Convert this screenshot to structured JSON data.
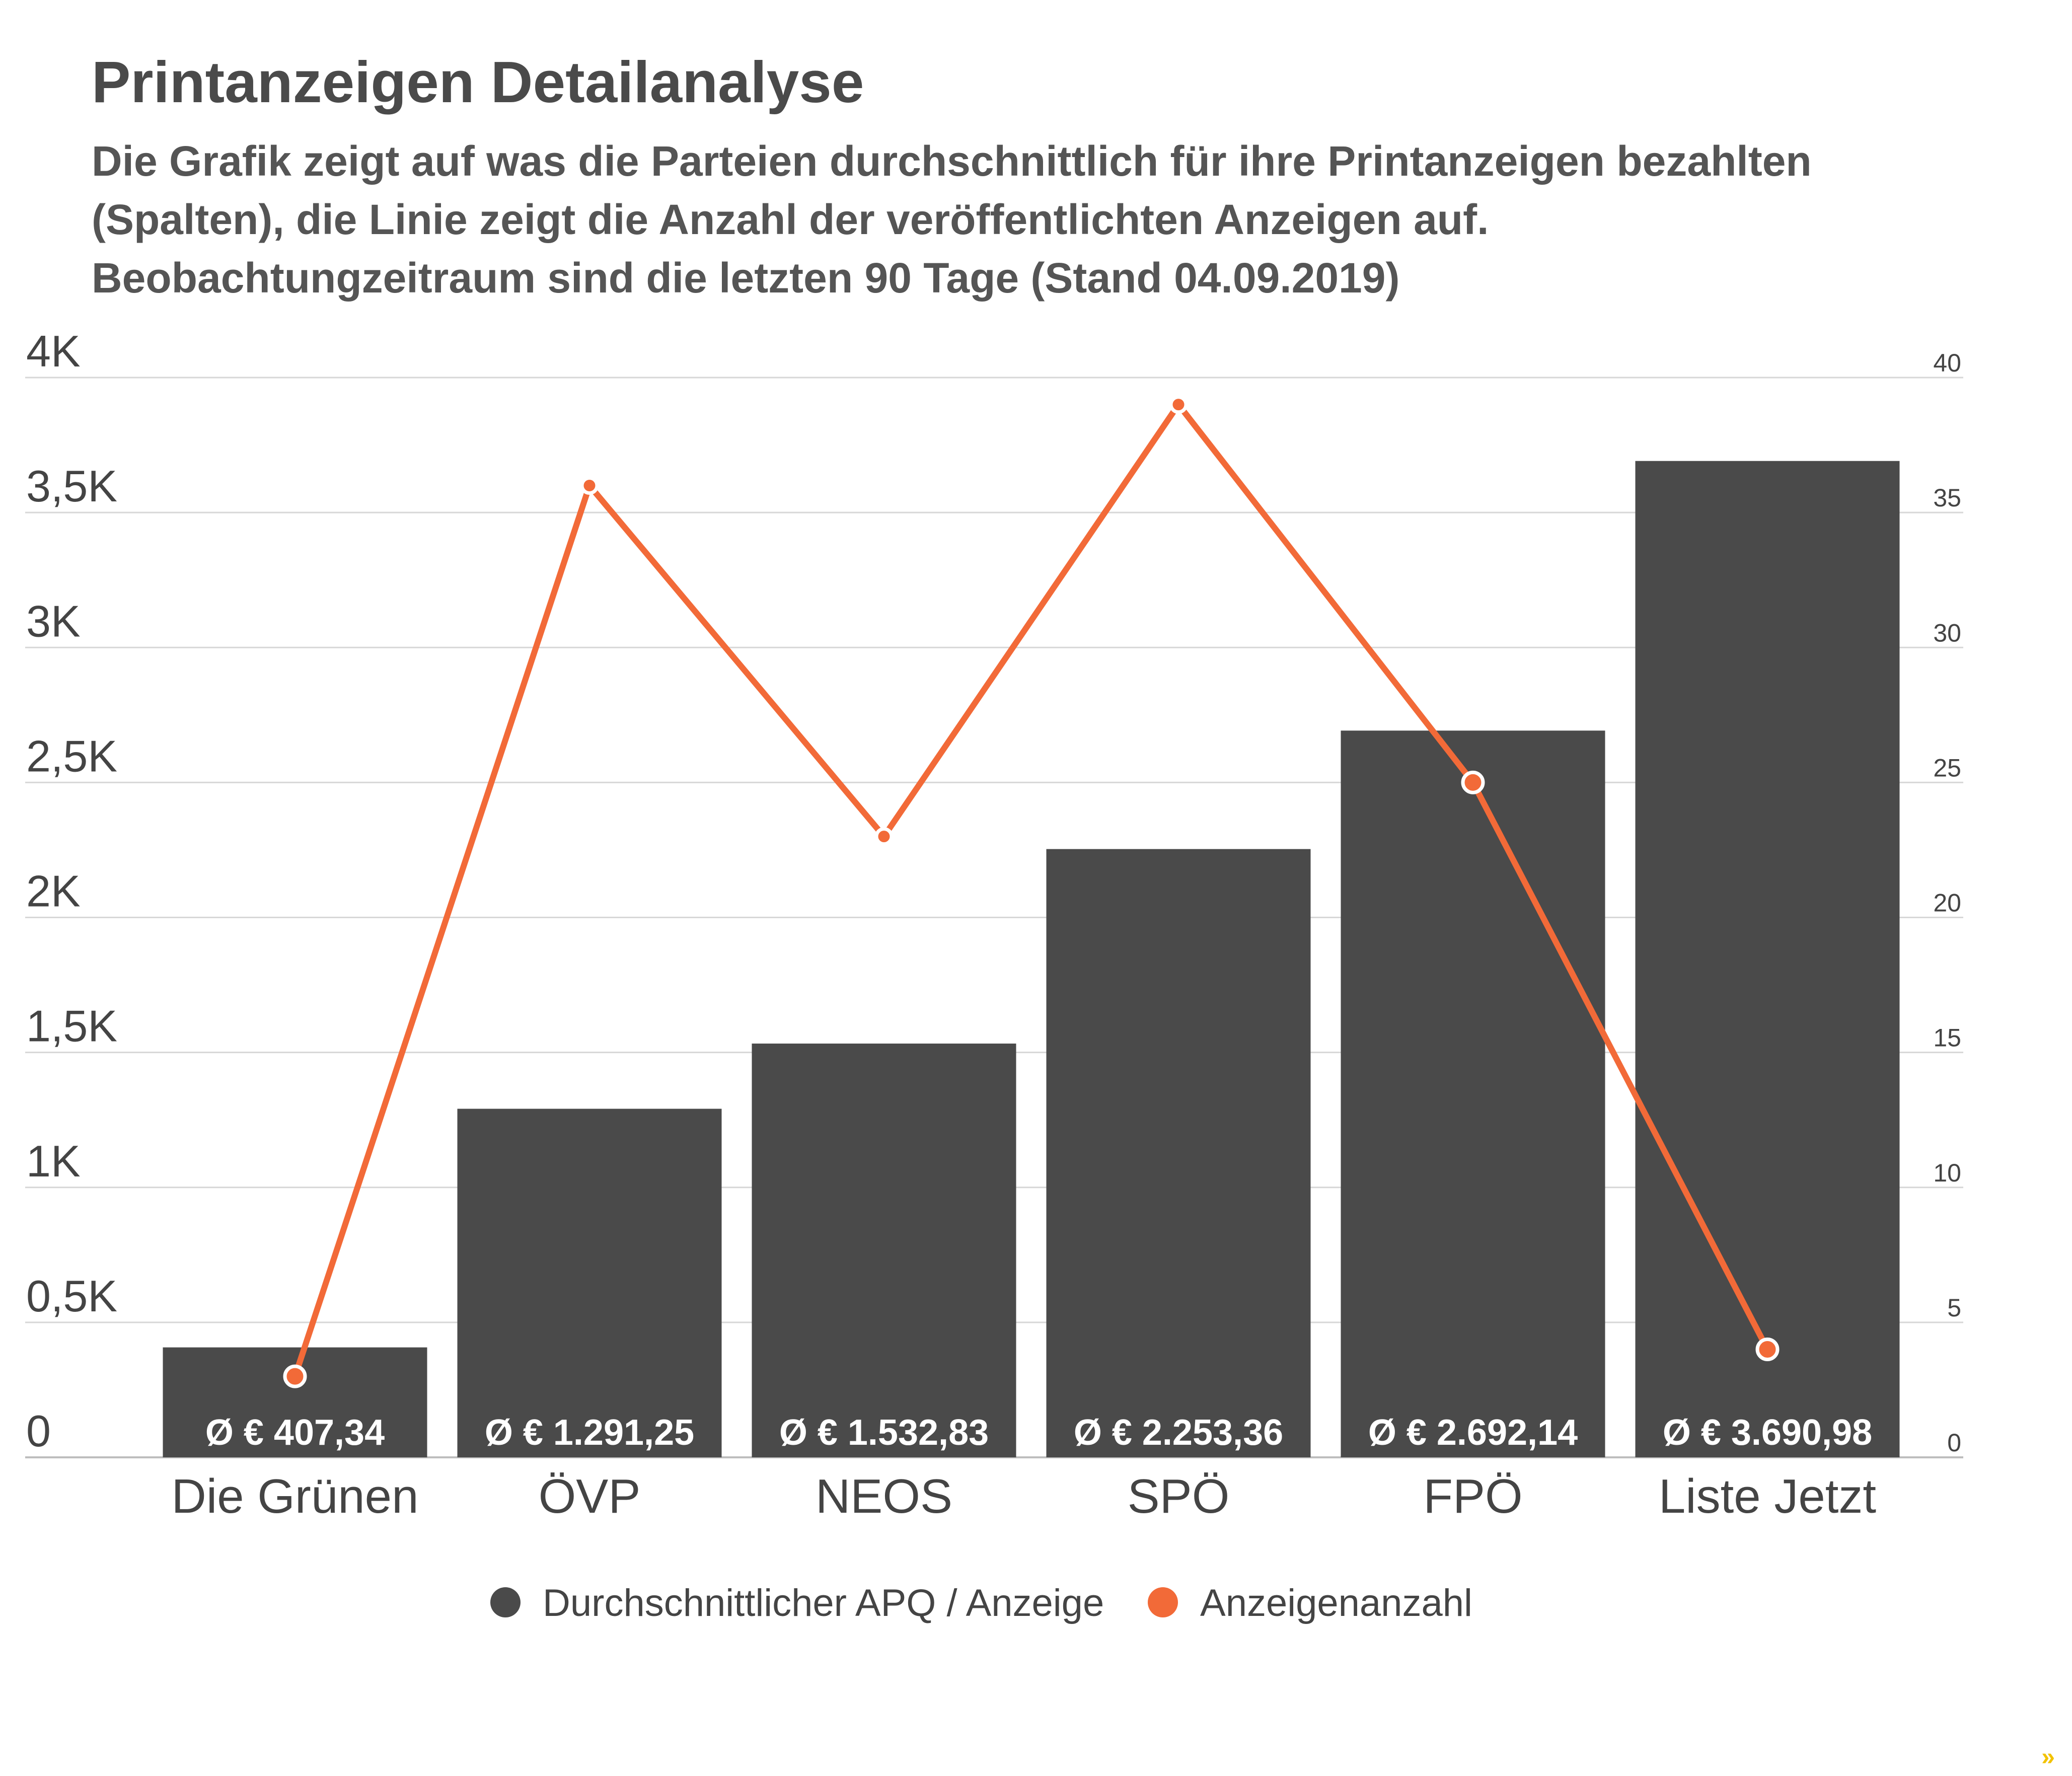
{
  "title": "Printanzeigen Detailanalyse",
  "subtitle_lines": [
    "Die Grafik zeigt auf was die Parteien durchschnittlich für ihre Printanzeigen bezahlten",
    "(Spalten), die Linie zeigt die Anzahl der veröffentlichten Anzeigen auf.",
    "Beobachtungzeitraum sind die letzten 90 Tage (Stand 04.09.2019)"
  ],
  "colors": {
    "bar": "#4a4a4a",
    "line": "#f26a38",
    "grid": "#d7d7d7",
    "axis_text": "#444444",
    "bar_label": "#ffffff"
  },
  "corner_mark": "»",
  "chart_data": {
    "type": "bar+line",
    "categories": [
      "Die Grünen",
      "ÖVP",
      "NEOS",
      "SPÖ",
      "FPÖ",
      "Liste Jetzt"
    ],
    "series": [
      {
        "name": "Durchschnittlicher APQ / Anzeige",
        "type": "bar",
        "axis": "left",
        "values": [
          407.34,
          1291.25,
          1532.83,
          2253.36,
          2692.14,
          3690.98
        ],
        "labels": [
          "Ø € 407,34",
          "Ø € 1.291,25",
          "Ø € 1.532,83",
          "Ø € 2.253,36",
          "Ø € 2.692,14",
          "Ø € 3.690,98"
        ]
      },
      {
        "name": "Anzeigenanzahl",
        "type": "line",
        "axis": "right",
        "values": [
          3,
          36,
          23,
          39,
          25,
          4
        ]
      }
    ],
    "y_left": {
      "range": [
        0,
        4000
      ],
      "ticks": [
        0,
        500,
        1000,
        1500,
        2000,
        2500,
        3000,
        3500,
        4000
      ],
      "tick_labels": [
        "0",
        "0,5K",
        "1K",
        "1,5K",
        "2K",
        "2,5K",
        "3K",
        "3,5K",
        "4K"
      ]
    },
    "y_right": {
      "range": [
        0,
        40
      ],
      "ticks": [
        0,
        5,
        10,
        15,
        20,
        25,
        30,
        35,
        40
      ],
      "tick_labels": [
        "0",
        "5",
        "10",
        "15",
        "20",
        "25",
        "30",
        "35",
        "40"
      ]
    },
    "grid": true,
    "legend_position": "bottom-center"
  }
}
